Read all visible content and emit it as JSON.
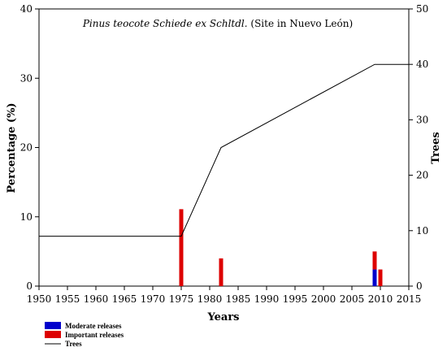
{
  "chart_data": {
    "type": "bar",
    "title_italic": "Pinus teocote Schiede ex Schltdl.",
    "title_rest": " (Site in Nuevo León)",
    "xlabel": "Years",
    "ylabel_left": "Percentage (%)",
    "ylabel_right": "Trees",
    "xlim": [
      1950,
      2015
    ],
    "ylim_left": [
      0,
      40
    ],
    "ylim_right": [
      0,
      50
    ],
    "x_ticks": [
      "1950",
      "1955",
      "1960",
      "1965",
      "1970",
      "1975",
      "1980",
      "1985",
      "1990",
      "1995",
      "2000",
      "2005",
      "2010",
      "2015"
    ],
    "y_left_ticks": [
      "0",
      "10",
      "20",
      "30",
      "40"
    ],
    "y_right_ticks": [
      "0",
      "10",
      "20",
      "30",
      "40",
      "50"
    ],
    "grid": false,
    "legend_position": "bottom-left",
    "series": [
      {
        "name": "Moderate releases",
        "color": "#0000cc",
        "axis": "left",
        "points": [
          {
            "x": 2009,
            "y": 2.4
          }
        ]
      },
      {
        "name": "Important releases",
        "color": "#dd0000",
        "axis": "left",
        "points": [
          {
            "x": 1975,
            "y": 11.1
          },
          {
            "x": 1982,
            "y": 4.0
          },
          {
            "x": 2009,
            "y": 2.6
          },
          {
            "x": 2010,
            "y": 2.4
          }
        ]
      },
      {
        "name": "Trees",
        "color": "#000000",
        "axis": "right",
        "type": "line",
        "points": [
          {
            "x": 1950,
            "y": 9
          },
          {
            "x": 1975,
            "y": 9
          },
          {
            "x": 1982,
            "y": 25
          },
          {
            "x": 2009,
            "y": 40
          },
          {
            "x": 2015,
            "y": 40
          }
        ]
      }
    ]
  }
}
